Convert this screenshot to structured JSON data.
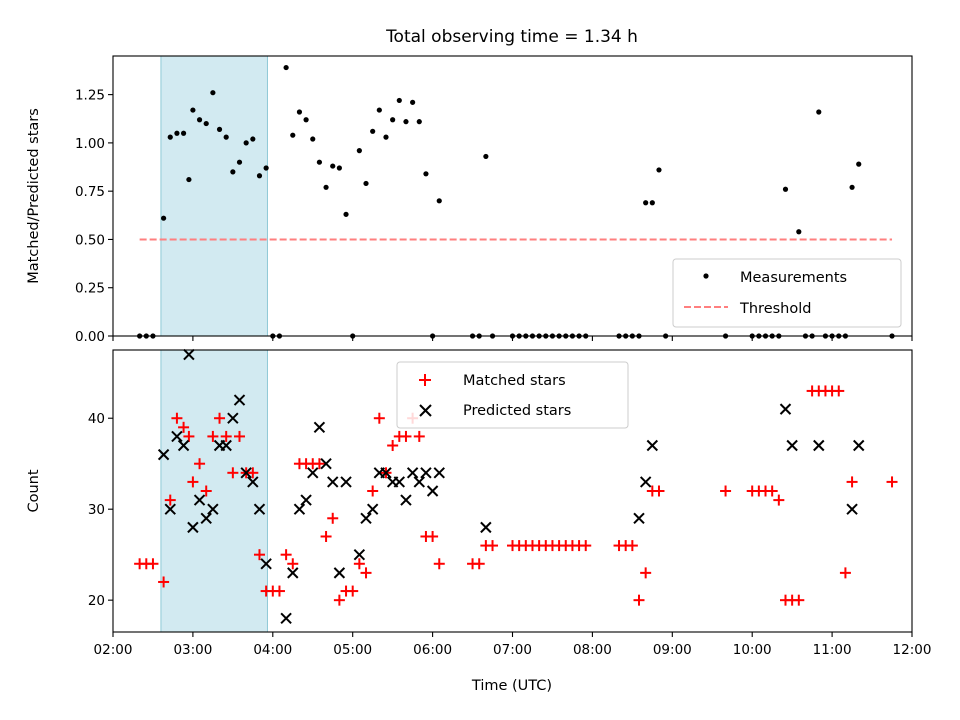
{
  "chart_data": [
    {
      "type": "scatter",
      "title": "Total observing time = 1.34 h",
      "ylabel": "Matched/Predicted stars",
      "xlabel": "",
      "xlim": [
        "02:00",
        "12:00"
      ],
      "ylim": [
        0,
        1.45
      ],
      "yticks": [
        "0.00",
        "0.25",
        "0.50",
        "0.75",
        "1.00",
        "1.25"
      ],
      "grid": false,
      "highlight_span": [
        "02:36",
        "03:56"
      ],
      "highlight_color": "#add8e6",
      "legend_position": "lower-right",
      "series": [
        {
          "name": "Measurements",
          "color": "#000000",
          "marker": "dot",
          "points": [
            [
              "02:20",
              0
            ],
            [
              "02:25",
              0
            ],
            [
              "02:30",
              0
            ],
            [
              "02:38",
              0.61
            ],
            [
              "02:43",
              1.03
            ],
            [
              "02:48",
              1.05
            ],
            [
              "02:53",
              1.05
            ],
            [
              "02:57",
              0.81
            ],
            [
              "03:00",
              1.17
            ],
            [
              "03:05",
              1.12
            ],
            [
              "03:10",
              1.1
            ],
            [
              "03:15",
              1.26
            ],
            [
              "03:20",
              1.07
            ],
            [
              "03:25",
              1.03
            ],
            [
              "03:30",
              0.85
            ],
            [
              "03:35",
              0.9
            ],
            [
              "03:40",
              1.0
            ],
            [
              "03:45",
              1.02
            ],
            [
              "03:50",
              0.83
            ],
            [
              "03:55",
              0.87
            ],
            [
              "04:00",
              0
            ],
            [
              "04:05",
              0
            ],
            [
              "04:10",
              1.39
            ],
            [
              "04:15",
              1.04
            ],
            [
              "04:20",
              1.16
            ],
            [
              "04:25",
              1.12
            ],
            [
              "04:30",
              1.02
            ],
            [
              "04:35",
              0.9
            ],
            [
              "04:40",
              0.77
            ],
            [
              "04:45",
              0.88
            ],
            [
              "04:50",
              0.87
            ],
            [
              "04:55",
              0.63
            ],
            [
              "05:00",
              0
            ],
            [
              "05:05",
              0.96
            ],
            [
              "05:10",
              0.79
            ],
            [
              "05:15",
              1.06
            ],
            [
              "05:20",
              1.17
            ],
            [
              "05:25",
              1.03
            ],
            [
              "05:30",
              1.12
            ],
            [
              "05:35",
              1.22
            ],
            [
              "05:40",
              1.11
            ],
            [
              "05:45",
              1.21
            ],
            [
              "05:50",
              1.11
            ],
            [
              "05:55",
              0.84
            ],
            [
              "06:00",
              0
            ],
            [
              "06:05",
              0.7
            ],
            [
              "06:30",
              0
            ],
            [
              "06:35",
              0
            ],
            [
              "06:40",
              0.93
            ],
            [
              "06:45",
              0
            ],
            [
              "07:00",
              0
            ],
            [
              "07:05",
              0
            ],
            [
              "07:10",
              0
            ],
            [
              "07:15",
              0
            ],
            [
              "07:20",
              0
            ],
            [
              "07:25",
              0
            ],
            [
              "07:30",
              0
            ],
            [
              "07:35",
              0
            ],
            [
              "07:40",
              0
            ],
            [
              "07:45",
              0
            ],
            [
              "07:50",
              0
            ],
            [
              "07:55",
              0
            ],
            [
              "08:20",
              0
            ],
            [
              "08:25",
              0
            ],
            [
              "08:30",
              0
            ],
            [
              "08:35",
              0
            ],
            [
              "08:40",
              0.69
            ],
            [
              "08:45",
              0.69
            ],
            [
              "08:50",
              0.86
            ],
            [
              "08:55",
              0
            ],
            [
              "09:40",
              0
            ],
            [
              "10:00",
              0
            ],
            [
              "10:05",
              0
            ],
            [
              "10:10",
              0
            ],
            [
              "10:15",
              0
            ],
            [
              "10:20",
              0
            ],
            [
              "10:25",
              0.76
            ],
            [
              "10:35",
              0.54
            ],
            [
              "10:40",
              0
            ],
            [
              "10:45",
              0
            ],
            [
              "10:50",
              1.16
            ],
            [
              "10:55",
              0
            ],
            [
              "11:00",
              0
            ],
            [
              "11:05",
              0
            ],
            [
              "11:10",
              0
            ],
            [
              "11:15",
              0.77
            ],
            [
              "11:20",
              0.89
            ],
            [
              "11:45",
              0
            ]
          ]
        },
        {
          "name": "Threshold",
          "color": "#ff7f7f",
          "style": "dashed-line",
          "points": [
            [
              "02:20",
              0.5
            ],
            [
              "11:45",
              0.5
            ]
          ]
        }
      ]
    },
    {
      "type": "scatter",
      "title": "",
      "ylabel": "Count",
      "xlabel": "Time (UTC)",
      "xlim": [
        "02:00",
        "12:00"
      ],
      "ylim": [
        16.5,
        47.5
      ],
      "yticks": [
        "20",
        "30",
        "40"
      ],
      "xticks": [
        "02:00",
        "03:00",
        "04:00",
        "05:00",
        "06:00",
        "07:00",
        "08:00",
        "09:00",
        "10:00",
        "11:00",
        "12:00"
      ],
      "grid": false,
      "highlight_span": [
        "02:36",
        "03:56"
      ],
      "highlight_color": "#add8e6",
      "legend_position": "top-center",
      "series": [
        {
          "name": "Matched stars",
          "color": "#ff0000",
          "marker": "plus",
          "points": [
            [
              "02:20",
              24
            ],
            [
              "02:25",
              24
            ],
            [
              "02:30",
              24
            ],
            [
              "02:38",
              22
            ],
            [
              "02:43",
              31
            ],
            [
              "02:48",
              40
            ],
            [
              "02:53",
              39
            ],
            [
              "02:57",
              38
            ],
            [
              "03:00",
              33
            ],
            [
              "03:05",
              35
            ],
            [
              "03:10",
              32
            ],
            [
              "03:15",
              38
            ],
            [
              "03:20",
              40
            ],
            [
              "03:25",
              38
            ],
            [
              "03:30",
              34
            ],
            [
              "03:35",
              38
            ],
            [
              "03:40",
              34
            ],
            [
              "03:45",
              34
            ],
            [
              "03:50",
              25
            ],
            [
              "03:55",
              21
            ],
            [
              "04:00",
              21
            ],
            [
              "04:05",
              21
            ],
            [
              "04:10",
              25
            ],
            [
              "04:15",
              24
            ],
            [
              "04:20",
              35
            ],
            [
              "04:25",
              35
            ],
            [
              "04:30",
              35
            ],
            [
              "04:35",
              35
            ],
            [
              "04:40",
              27
            ],
            [
              "04:45",
              29
            ],
            [
              "04:50",
              20
            ],
            [
              "04:55",
              21
            ],
            [
              "05:00",
              21
            ],
            [
              "05:05",
              24
            ],
            [
              "05:10",
              23
            ],
            [
              "05:15",
              32
            ],
            [
              "05:20",
              40
            ],
            [
              "05:25",
              34
            ],
            [
              "05:30",
              37
            ],
            [
              "05:35",
              38
            ],
            [
              "05:40",
              38
            ],
            [
              "05:45",
              40
            ],
            [
              "05:50",
              38
            ],
            [
              "05:55",
              27
            ],
            [
              "06:00",
              27
            ],
            [
              "06:05",
              24
            ],
            [
              "06:30",
              24
            ],
            [
              "06:35",
              24
            ],
            [
              "06:40",
              26
            ],
            [
              "06:45",
              26
            ],
            [
              "07:00",
              26
            ],
            [
              "07:05",
              26
            ],
            [
              "07:10",
              26
            ],
            [
              "07:15",
              26
            ],
            [
              "07:20",
              26
            ],
            [
              "07:25",
              26
            ],
            [
              "07:30",
              26
            ],
            [
              "07:35",
              26
            ],
            [
              "07:40",
              26
            ],
            [
              "07:45",
              26
            ],
            [
              "07:50",
              26
            ],
            [
              "07:55",
              26
            ],
            [
              "08:20",
              26
            ],
            [
              "08:25",
              26
            ],
            [
              "08:30",
              26
            ],
            [
              "08:35",
              20
            ],
            [
              "08:40",
              23
            ],
            [
              "08:45",
              32
            ],
            [
              "08:50",
              32
            ],
            [
              "09:40",
              32
            ],
            [
              "10:00",
              32
            ],
            [
              "10:05",
              32
            ],
            [
              "10:10",
              32
            ],
            [
              "10:15",
              32
            ],
            [
              "10:20",
              31
            ],
            [
              "10:25",
              20
            ],
            [
              "10:30",
              20
            ],
            [
              "10:35",
              20
            ],
            [
              "10:45",
              43
            ],
            [
              "10:50",
              43
            ],
            [
              "10:55",
              43
            ],
            [
              "11:00",
              43
            ],
            [
              "11:05",
              43
            ],
            [
              "11:10",
              23
            ],
            [
              "11:15",
              33
            ],
            [
              "11:45",
              33
            ]
          ]
        },
        {
          "name": "Predicted stars",
          "color": "#000000",
          "marker": "x",
          "points": [
            [
              "02:38",
              36
            ],
            [
              "02:43",
              30
            ],
            [
              "02:48",
              38
            ],
            [
              "02:53",
              37
            ],
            [
              "02:57",
              47
            ],
            [
              "03:00",
              28
            ],
            [
              "03:05",
              31
            ],
            [
              "03:10",
              29
            ],
            [
              "03:15",
              30
            ],
            [
              "03:20",
              37
            ],
            [
              "03:25",
              37
            ],
            [
              "03:30",
              40
            ],
            [
              "03:35",
              42
            ],
            [
              "03:40",
              34
            ],
            [
              "03:45",
              33
            ],
            [
              "03:50",
              30
            ],
            [
              "03:55",
              24
            ],
            [
              "04:10",
              18
            ],
            [
              "04:15",
              23
            ],
            [
              "04:20",
              30
            ],
            [
              "04:25",
              31
            ],
            [
              "04:30",
              34
            ],
            [
              "04:35",
              39
            ],
            [
              "04:40",
              35
            ],
            [
              "04:45",
              33
            ],
            [
              "04:50",
              23
            ],
            [
              "04:55",
              33
            ],
            [
              "05:05",
              25
            ],
            [
              "05:10",
              29
            ],
            [
              "05:15",
              30
            ],
            [
              "05:20",
              34
            ],
            [
              "05:25",
              34
            ],
            [
              "05:30",
              33
            ],
            [
              "05:35",
              33
            ],
            [
              "05:40",
              31
            ],
            [
              "05:45",
              34
            ],
            [
              "05:50",
              33
            ],
            [
              "05:55",
              34
            ],
            [
              "06:00",
              32
            ],
            [
              "06:05",
              34
            ],
            [
              "06:40",
              28
            ],
            [
              "08:35",
              29
            ],
            [
              "08:40",
              33
            ],
            [
              "08:45",
              37
            ],
            [
              "10:25",
              41
            ],
            [
              "10:30",
              37
            ],
            [
              "10:50",
              37
            ],
            [
              "11:15",
              30
            ],
            [
              "11:20",
              37
            ]
          ]
        }
      ]
    }
  ]
}
